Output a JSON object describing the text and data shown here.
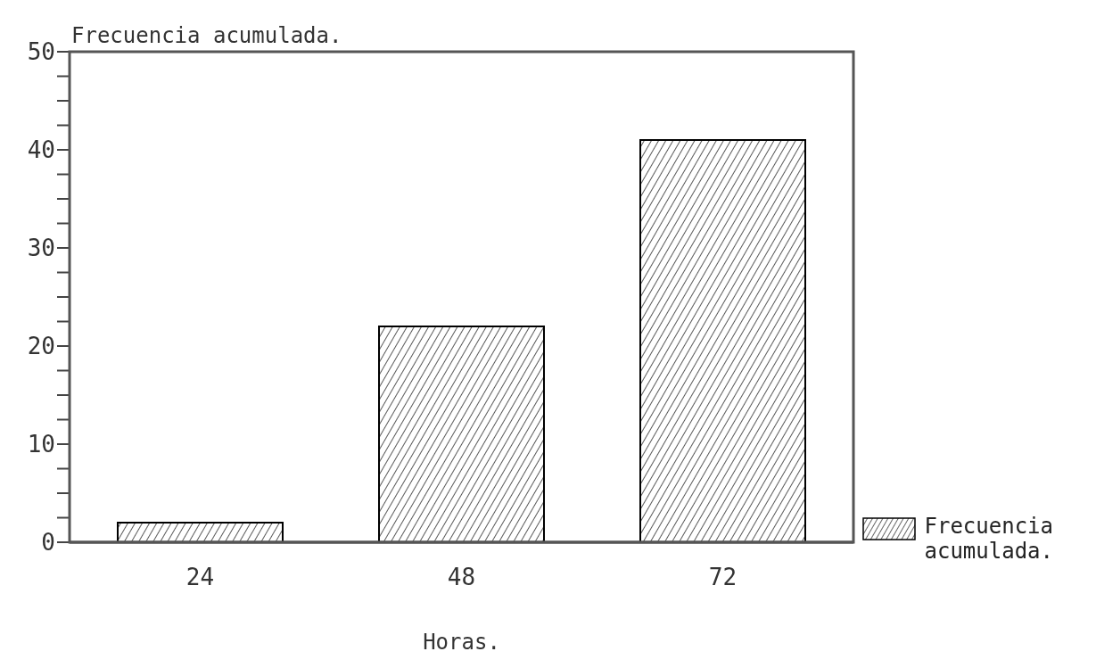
{
  "chart_data": {
    "type": "bar",
    "ylabel": "Frecuencia acumulada.",
    "xlabel": "Horas.",
    "categories": [
      "24",
      "48",
      "72"
    ],
    "series": [
      {
        "name": "Frecuencia acumulada.",
        "color": "#000000",
        "values": [
          2,
          22,
          41
        ]
      }
    ],
    "ylim": [
      0,
      50
    ],
    "yticks": [
      0,
      {
        "value": 2.5,
        "label": null
      },
      {
        "value": 5,
        "label": null
      },
      {
        "value": 7.5,
        "label": null
      },
      10,
      {
        "value": 12.5,
        "label": null
      },
      {
        "value": 15,
        "label": null
      },
      {
        "value": 17.5,
        "label": null
      },
      20,
      {
        "value": 22.5,
        "label": null
      },
      {
        "value": 25,
        "label": null
      },
      {
        "value": 27.5,
        "label": null
      },
      30,
      {
        "value": 32.5,
        "label": null
      },
      {
        "value": 35,
        "label": null
      },
      {
        "value": 37.5,
        "label": null
      },
      40,
      {
        "value": 42.5,
        "label": null
      },
      {
        "value": 45,
        "label": null
      },
      {
        "value": 47.5,
        "label": null
      },
      50
    ],
    "grid": false,
    "legend": "right"
  }
}
